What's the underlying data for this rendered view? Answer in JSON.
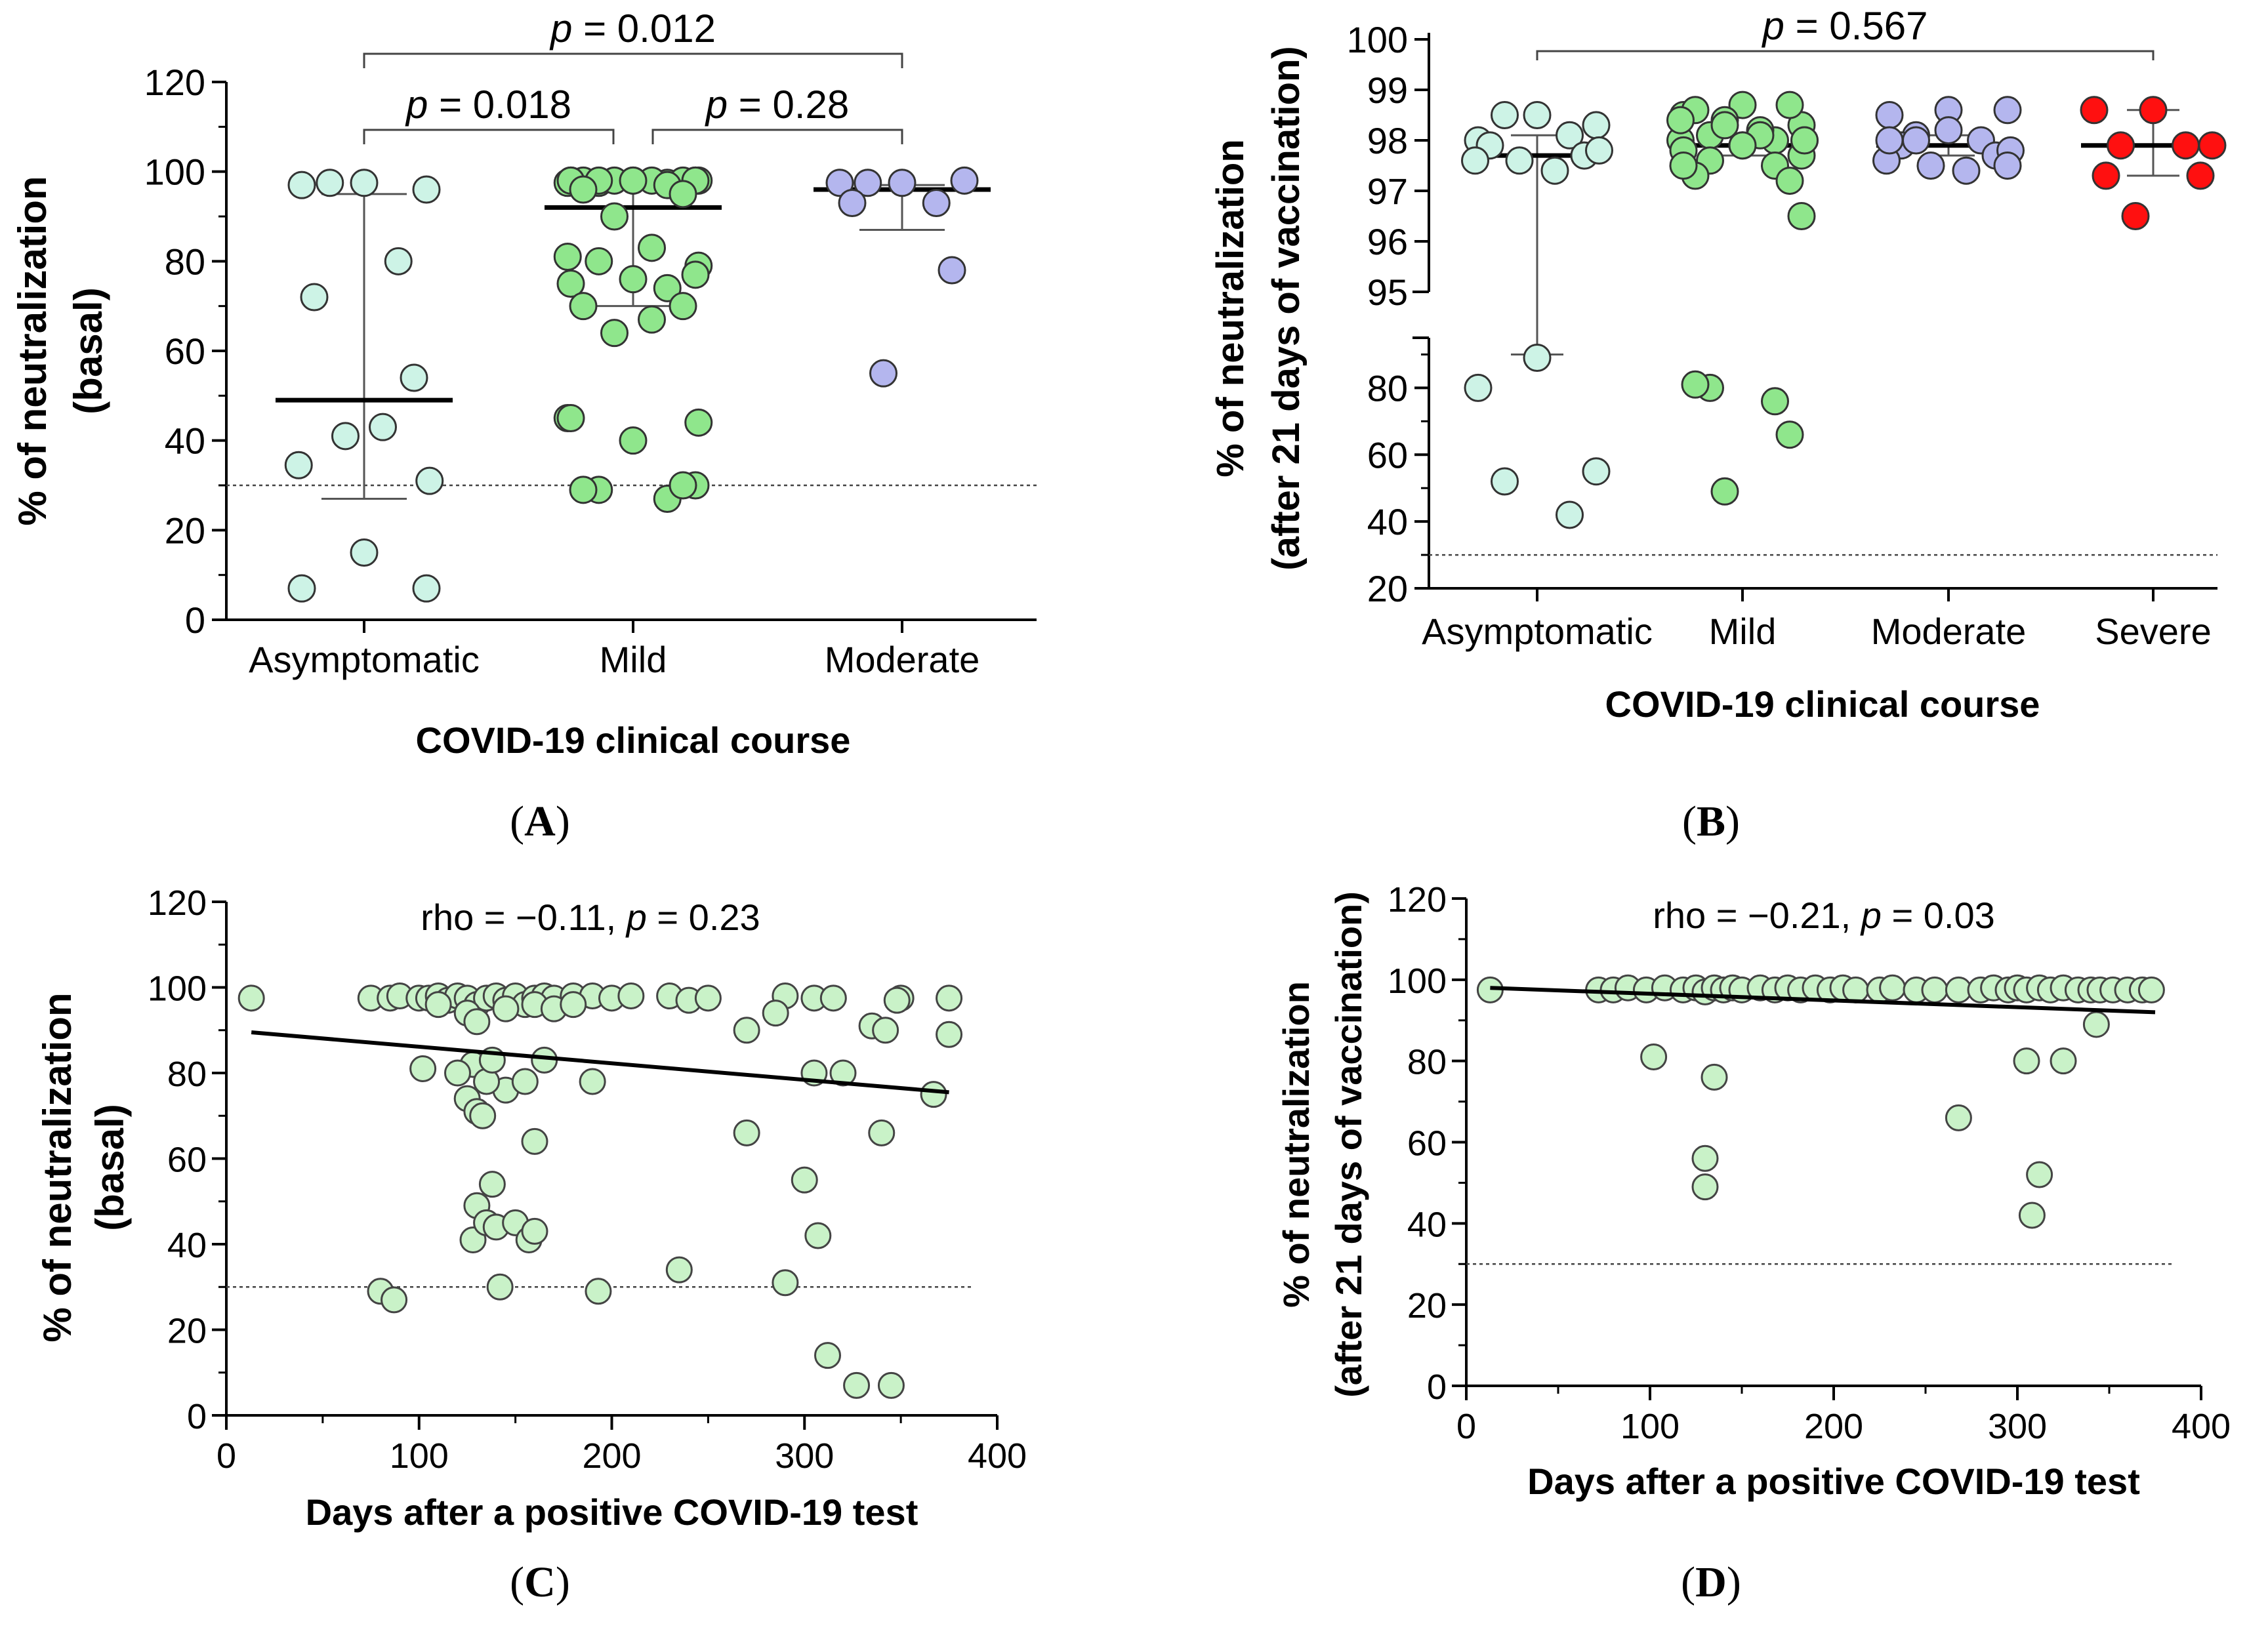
{
  "figure": {
    "panel_labels": [
      "A",
      "B",
      "C",
      "D"
    ]
  },
  "colors": {
    "asymptomatic": "#cdf3e6",
    "mild": "#8fe68c",
    "moderate": "#b4b6ee",
    "severe": "#ff1010",
    "scatter": "#c9f2c8",
    "axis": "#000000",
    "dashed": "#444444",
    "errorbar": "#555555"
  },
  "chart_data": [
    {
      "id": "A",
      "type": "scatter",
      "ylabel_line1": "% of neutralization",
      "ylabel_line2": "(basal)",
      "xlabel": "COVID-19 clinical course",
      "ylim": [
        0,
        120
      ],
      "yticks": [
        0,
        20,
        40,
        60,
        80,
        100,
        120
      ],
      "threshold": 30,
      "categories": [
        "Asymptomatic",
        "Mild",
        "Moderate"
      ],
      "groups": [
        {
          "name": "Asymptomatic",
          "color_key": "asymptomatic",
          "median": 49,
          "q1": 27,
          "q3": 95,
          "values": [
            97.5,
            97,
            96,
            97.5,
            80,
            72,
            54,
            41,
            43,
            34.5,
            31,
            15,
            7,
            7
          ]
        },
        {
          "name": "Mild",
          "color_key": "mild",
          "median": 92,
          "q1": 70,
          "q3": 96,
          "values": [
            98,
            98,
            98,
            97.5,
            97.5,
            98,
            98,
            98,
            98,
            97.5,
            98,
            98,
            98,
            98,
            98,
            97,
            96,
            95,
            90,
            83,
            81,
            79,
            76,
            75,
            77,
            80,
            74,
            70,
            70,
            64,
            67,
            45,
            44,
            40,
            45,
            30,
            29,
            27,
            29,
            30
          ]
        },
        {
          "name": "Moderate",
          "color_key": "moderate",
          "median": 96,
          "q1": 87,
          "q3": 97,
          "values": [
            97.5,
            97.5,
            98,
            97.5,
            93,
            93,
            78,
            55
          ]
        }
      ],
      "comparisons": [
        {
          "label": "p = 0.012",
          "p_prefix": "p",
          "p_value": "= 0.012",
          "from": 0,
          "to": 2,
          "level": 2
        },
        {
          "label": "p = 0.018",
          "p_prefix": "p",
          "p_value": "= 0.018",
          "from": 0,
          "to": 1,
          "level": 1
        },
        {
          "label": "p = 0.28",
          "p_prefix": "p",
          "p_value": "= 0.28",
          "from": 1,
          "to": 2,
          "level": 1
        }
      ]
    },
    {
      "id": "B",
      "type": "scatter",
      "ylabel_line1": "% of neutralization",
      "ylabel_line2": "(after 21 days of vaccination)",
      "xlabel": "COVID-19 clinical course",
      "y_upper_range": [
        95,
        100
      ],
      "y_upper_ticks": [
        95,
        96,
        97,
        98,
        99,
        100
      ],
      "y_lower_range": [
        20,
        95
      ],
      "y_lower_ticks": [
        20,
        40,
        60,
        80
      ],
      "threshold": 30,
      "categories": [
        "Asymptomatic",
        "Mild",
        "Moderate",
        "Severe"
      ],
      "groups": [
        {
          "name": "Asymptomatic",
          "color_key": "asymptomatic",
          "median": 97.7,
          "q1": 90,
          "q3": 98.1,
          "values": [
            98.5,
            98,
            98.3,
            98.5,
            98.1,
            97.9,
            97.7,
            97.6,
            97.4,
            97.6,
            97.8,
            89,
            80,
            55,
            52,
            42
          ]
        },
        {
          "name": "Mild",
          "color_key": "mild",
          "median": 97.9,
          "q1": 97.7,
          "q3": 98.1,
          "values": [
            98.7,
            98.5,
            98.3,
            98.1,
            98.0,
            98.6,
            98.7,
            98.4,
            98.2,
            98.0,
            98.0,
            97.9,
            97.8,
            97.7,
            97.6,
            97.5,
            97.3,
            97.2,
            98.3,
            98.1,
            98.4,
            98.0,
            97.9,
            97.5,
            96.5,
            80,
            76,
            81,
            66,
            49
          ]
        },
        {
          "name": "Moderate",
          "color_key": "moderate",
          "median": 97.9,
          "q1": 97.7,
          "q3": 98.1,
          "values": [
            98.6,
            98.5,
            98.6,
            98.1,
            98.0,
            97.9,
            97.7,
            97.5,
            97.4,
            97.6,
            97.8,
            98.2,
            98.0,
            97.5,
            98.0
          ]
        },
        {
          "name": "Severe",
          "color_key": "severe",
          "median": 97.9,
          "q1": 97.3,
          "q3": 98.6,
          "values": [
            98.6,
            98.6,
            97.9,
            97.9,
            97.9,
            97.3,
            97.3,
            96.5
          ]
        }
      ],
      "comparisons": [
        {
          "label": "p = 0.567",
          "p_prefix": "p",
          "p_value": "= 0.567",
          "from": 0,
          "to": 3,
          "level": 1
        }
      ]
    },
    {
      "id": "C",
      "type": "scatter",
      "annotation": "rho = −0.11, p = 0.23",
      "annotation_pre": "rho = −0.11,",
      "annotation_p": "p",
      "annotation_post": "= 0.23",
      "ylabel_line1": "% of neutralization",
      "ylabel_line2": "(basal)",
      "xlabel": "Days after a positive COVID-19 test",
      "xlim": [
        0,
        400
      ],
      "xticks": [
        0,
        100,
        200,
        300,
        400
      ],
      "ylim": [
        0,
        120
      ],
      "yticks": [
        0,
        20,
        40,
        60,
        80,
        100,
        120
      ],
      "threshold": 30,
      "regression": {
        "x": [
          13,
          375
        ],
        "y": [
          89.5,
          75.5
        ]
      },
      "points": [
        [
          13,
          97.5
        ],
        [
          75,
          97.5
        ],
        [
          85,
          97.5
        ],
        [
          90,
          98
        ],
        [
          100,
          97.5
        ],
        [
          105,
          97.5
        ],
        [
          110,
          98
        ],
        [
          115,
          97
        ],
        [
          120,
          98
        ],
        [
          125,
          97.5
        ],
        [
          130,
          96
        ],
        [
          135,
          97.5
        ],
        [
          140,
          98
        ],
        [
          145,
          97
        ],
        [
          150,
          98
        ],
        [
          155,
          96
        ],
        [
          160,
          97.5
        ],
        [
          165,
          98
        ],
        [
          170,
          97.5
        ],
        [
          180,
          98
        ],
        [
          190,
          98
        ],
        [
          200,
          97.5
        ],
        [
          210,
          98
        ],
        [
          230,
          98
        ],
        [
          240,
          97
        ],
        [
          250,
          97.5
        ],
        [
          290,
          98
        ],
        [
          305,
          97.5
        ],
        [
          315,
          97.5
        ],
        [
          350,
          97.5
        ],
        [
          375,
          97.5
        ],
        [
          110,
          96
        ],
        [
          125,
          94
        ],
        [
          130,
          92
        ],
        [
          145,
          95
        ],
        [
          160,
          96
        ],
        [
          170,
          95
        ],
        [
          180,
          96
        ],
        [
          128,
          82
        ],
        [
          145,
          76
        ],
        [
          102,
          81
        ],
        [
          120,
          80
        ],
        [
          125,
          74
        ],
        [
          135,
          78
        ],
        [
          138,
          83
        ],
        [
          155,
          78
        ],
        [
          165,
          83
        ],
        [
          190,
          78
        ],
        [
          270,
          90
        ],
        [
          285,
          94
        ],
        [
          305,
          80
        ],
        [
          320,
          80
        ],
        [
          335,
          91
        ],
        [
          342,
          90
        ],
        [
          348,
          97
        ],
        [
          367,
          75
        ],
        [
          375,
          89
        ],
        [
          130,
          71
        ],
        [
          133,
          70
        ],
        [
          160,
          64
        ],
        [
          270,
          66
        ],
        [
          340,
          66
        ],
        [
          138,
          54
        ],
        [
          130,
          49
        ],
        [
          128,
          41
        ],
        [
          135,
          45
        ],
        [
          140,
          44
        ],
        [
          150,
          45
        ],
        [
          157,
          41
        ],
        [
          160,
          43
        ],
        [
          300,
          55
        ],
        [
          307,
          42
        ],
        [
          80,
          29
        ],
        [
          87,
          27
        ],
        [
          142,
          30
        ],
        [
          193,
          29
        ],
        [
          235,
          34
        ],
        [
          290,
          31
        ],
        [
          312,
          14
        ],
        [
          327,
          7
        ],
        [
          345,
          7
        ]
      ]
    },
    {
      "id": "D",
      "type": "scatter",
      "annotation": "rho = −0.21, p = 0.03",
      "annotation_pre": "rho = −0.21,",
      "annotation_p": "p",
      "annotation_post": "= 0.03",
      "ylabel_line1": "% of neutralization",
      "ylabel_line2": "(after 21 days of vaccination)",
      "xlabel": "Days after a positive COVID-19 test",
      "xlim": [
        0,
        400
      ],
      "xticks": [
        0,
        100,
        200,
        300,
        400
      ],
      "ylim": [
        0,
        120
      ],
      "yticks": [
        0,
        20,
        40,
        60,
        80,
        100,
        120
      ],
      "threshold": 30,
      "regression": {
        "x": [
          13,
          375
        ],
        "y": [
          98,
          92
        ]
      },
      "points": [
        [
          13,
          97.5
        ],
        [
          72,
          97.5
        ],
        [
          80,
          97.5
        ],
        [
          88,
          98
        ],
        [
          98,
          97.5
        ],
        [
          108,
          98
        ],
        [
          118,
          97.5
        ],
        [
          125,
          98
        ],
        [
          130,
          97
        ],
        [
          135,
          98
        ],
        [
          140,
          97.5
        ],
        [
          145,
          98
        ],
        [
          150,
          97.5
        ],
        [
          160,
          98
        ],
        [
          168,
          97.5
        ],
        [
          175,
          98
        ],
        [
          182,
          97.5
        ],
        [
          190,
          98
        ],
        [
          198,
          97.5
        ],
        [
          205,
          98
        ],
        [
          212,
          97.5
        ],
        [
          225,
          97.5
        ],
        [
          232,
          98
        ],
        [
          245,
          97.5
        ],
        [
          255,
          97.5
        ],
        [
          268,
          97.5
        ],
        [
          280,
          97.5
        ],
        [
          287,
          98
        ],
        [
          295,
          97.5
        ],
        [
          300,
          98
        ],
        [
          305,
          97.5
        ],
        [
          312,
          98
        ],
        [
          318,
          97.5
        ],
        [
          325,
          98
        ],
        [
          333,
          97.5
        ],
        [
          340,
          97.5
        ],
        [
          345,
          97.5
        ],
        [
          352,
          97.5
        ],
        [
          360,
          97.5
        ],
        [
          368,
          97.5
        ],
        [
          373,
          97.5
        ],
        [
          102,
          81
        ],
        [
          135,
          76
        ],
        [
          130,
          56
        ],
        [
          130,
          49
        ],
        [
          268,
          66
        ],
        [
          305,
          80
        ],
        [
          325,
          80
        ],
        [
          312,
          52
        ],
        [
          308,
          42
        ],
        [
          343,
          89
        ]
      ]
    }
  ]
}
